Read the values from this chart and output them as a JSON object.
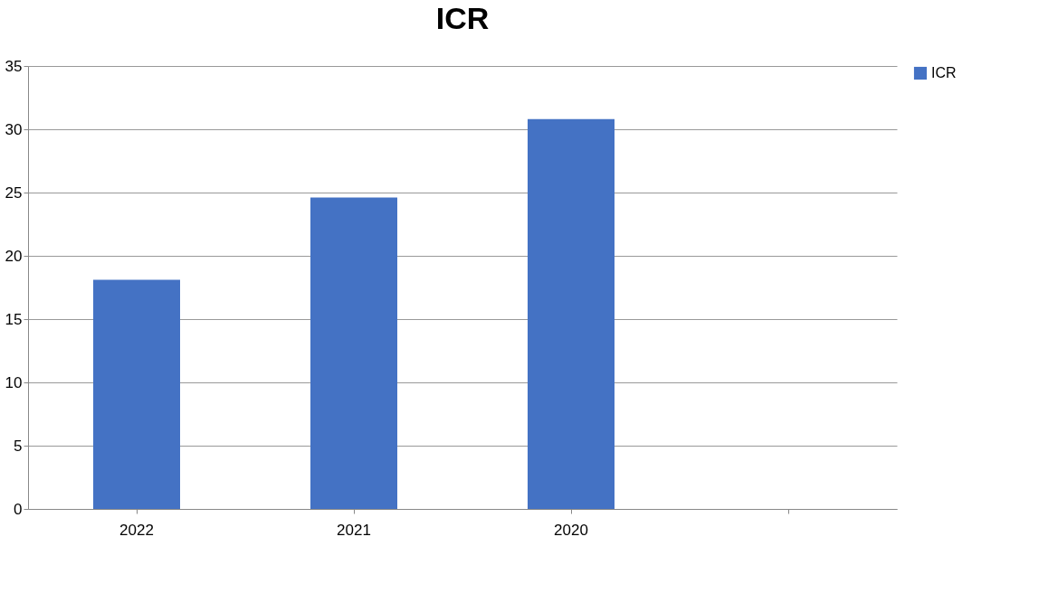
{
  "chart_data": {
    "type": "bar",
    "title": "ICR",
    "categories": [
      "2022",
      "2021",
      "2020",
      null
    ],
    "series": [
      {
        "name": "ICR",
        "color": "#4472c4",
        "values": [
          18.1,
          24.6,
          30.8,
          null
        ]
      }
    ],
    "ylim": [
      0,
      35
    ],
    "yticks": [
      0,
      5,
      10,
      15,
      20,
      25,
      30,
      35
    ],
    "grid": "y",
    "legend": "right"
  }
}
